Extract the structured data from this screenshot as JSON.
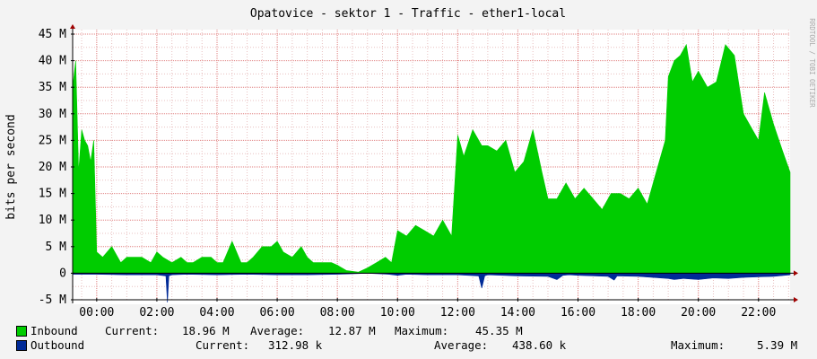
{
  "chart_data": {
    "type": "area",
    "title": "Opatovice - sektor 1 - Traffic - ether1-local",
    "ylabel": "bits per second",
    "watermark": "RRDTOOL / TOBI OETIKER",
    "ylim": [
      -5,
      45
    ],
    "y_ticks": [
      -5,
      0,
      5,
      10,
      15,
      20,
      25,
      30,
      35,
      40,
      45
    ],
    "y_tick_labels": [
      "-5 M",
      "0",
      "5 M",
      "10 M",
      "15 M",
      "20 M",
      "25 M",
      "30 M",
      "35 M",
      "40 M",
      "45 M"
    ],
    "xlim": [
      -0.8,
      23.05
    ],
    "x_ticks": [
      0,
      2,
      4,
      6,
      8,
      10,
      12,
      14,
      16,
      18,
      20,
      22
    ],
    "x_tick_labels": [
      "00:00",
      "02:00",
      "04:00",
      "06:00",
      "08:00",
      "10:00",
      "12:00",
      "14:00",
      "16:00",
      "18:00",
      "20:00",
      "22:00"
    ],
    "grid": true,
    "series": [
      {
        "name": "Inbound",
        "color": "#00cc00",
        "x": [
          -0.8,
          -0.7,
          -0.6,
          -0.5,
          -0.4,
          -0.3,
          -0.2,
          -0.1,
          0.0,
          0.2,
          0.5,
          0.8,
          1.0,
          1.2,
          1.5,
          1.8,
          2.0,
          2.2,
          2.5,
          2.8,
          3.0,
          3.2,
          3.5,
          3.8,
          4.0,
          4.2,
          4.5,
          4.8,
          5.0,
          5.2,
          5.5,
          5.8,
          6.0,
          6.2,
          6.5,
          6.8,
          7.0,
          7.2,
          7.5,
          7.8,
          8.0,
          8.3,
          8.7,
          9.0,
          9.3,
          9.6,
          9.8,
          10.0,
          10.3,
          10.6,
          10.9,
          11.2,
          11.5,
          11.8,
          12.0,
          12.2,
          12.5,
          12.8,
          13.0,
          13.3,
          13.6,
          13.9,
          14.2,
          14.5,
          14.8,
          15.0,
          15.3,
          15.6,
          15.9,
          16.2,
          16.5,
          16.8,
          17.1,
          17.4,
          17.7,
          18.0,
          18.3,
          18.6,
          18.9,
          19.0,
          19.2,
          19.4,
          19.6,
          19.8,
          20.0,
          20.3,
          20.6,
          20.9,
          21.2,
          21.5,
          21.8,
          22.0,
          22.2,
          22.5,
          22.8,
          23.05
        ],
        "y": [
          35,
          40,
          19,
          27,
          25,
          24,
          21,
          25,
          4,
          3,
          5,
          2,
          3,
          3,
          3,
          2,
          4,
          3,
          2,
          3,
          2,
          2,
          3,
          3,
          2,
          2,
          6,
          2,
          2,
          3,
          5,
          5,
          6,
          4,
          3,
          5,
          3,
          2,
          2,
          2,
          1.5,
          0.5,
          0.2,
          1,
          2,
          3,
          2,
          8,
          7,
          9,
          8,
          7,
          10,
          7,
          26,
          22,
          27,
          24,
          24,
          23,
          25,
          19,
          21,
          27,
          19,
          14,
          14,
          17,
          14,
          16,
          14,
          12,
          15,
          15,
          14,
          16,
          13,
          19,
          25,
          37,
          40,
          41,
          43,
          36,
          38,
          35,
          36,
          43,
          41,
          30,
          27,
          25,
          34,
          28,
          23,
          19
        ]
      },
      {
        "name": "Outbound",
        "color": "#002a97",
        "x": [
          -0.8,
          0.0,
          1.0,
          2.0,
          2.3,
          2.35,
          2.4,
          2.5,
          3.0,
          4.0,
          5.0,
          6.0,
          7.0,
          8.0,
          9.0,
          9.7,
          10.0,
          10.3,
          11.0,
          12.0,
          12.7,
          12.8,
          12.9,
          13.0,
          14.0,
          15.0,
          15.3,
          15.5,
          15.7,
          16.0,
          17.0,
          17.2,
          17.3,
          18.0,
          19.0,
          19.2,
          19.5,
          20.0,
          20.5,
          21.0,
          21.5,
          22.0,
          22.5,
          23.05
        ],
        "y": [
          -0.2,
          -0.2,
          -0.3,
          -0.3,
          -0.5,
          -5.5,
          -0.5,
          -0.3,
          -0.2,
          -0.3,
          -0.2,
          -0.3,
          -0.3,
          -0.2,
          0,
          -0.2,
          -0.4,
          -0.2,
          -0.3,
          -0.3,
          -0.5,
          -2.8,
          -0.5,
          -0.3,
          -0.5,
          -0.6,
          -1.2,
          -0.4,
          -0.3,
          -0.4,
          -0.6,
          -1.3,
          -0.5,
          -0.6,
          -1.0,
          -1.2,
          -1.0,
          -1.2,
          -0.9,
          -1.0,
          -0.8,
          -0.7,
          -0.6,
          -0.3
        ]
      }
    ]
  },
  "legend": {
    "inbound": {
      "label": "Inbound",
      "current_label": "Current:",
      "current": "18.96 M",
      "average_label": "Average:",
      "average": "12.87 M",
      "maximum_label": "Maximum:",
      "maximum": "45.35 M",
      "color": "#00cc00"
    },
    "outbound": {
      "label": "Outbound",
      "current_label": "Current:",
      "current": "312.98 k",
      "average_label": "Average:",
      "average": "438.60 k",
      "maximum_label": "Maximum:",
      "maximum": "5.39 M",
      "color": "#002a97"
    }
  }
}
